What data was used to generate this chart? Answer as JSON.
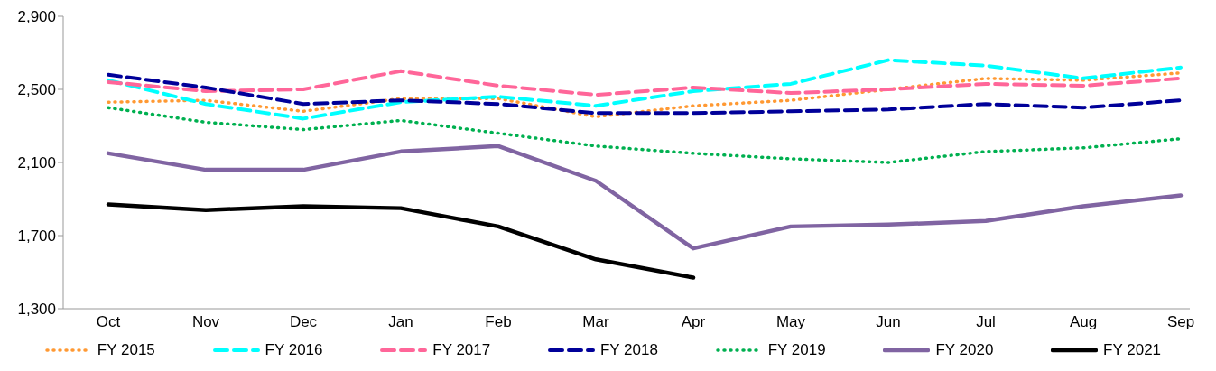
{
  "chart_data": {
    "type": "line",
    "categories": [
      "Oct",
      "Nov",
      "Dec",
      "Jan",
      "Feb",
      "Mar",
      "Apr",
      "May",
      "Jun",
      "Jul",
      "Aug",
      "Sep"
    ],
    "series": [
      {
        "name": "FY 2015",
        "color": "#ff9933",
        "line_style": "dotted",
        "values": [
          2430,
          2440,
          2380,
          2450,
          2450,
          2350,
          2410,
          2440,
          2500,
          2560,
          2550,
          2590
        ]
      },
      {
        "name": "FY 2016",
        "color": "#00ffff",
        "line_style": "dashed",
        "values": [
          2550,
          2420,
          2340,
          2430,
          2460,
          2410,
          2490,
          2530,
          2660,
          2630,
          2560,
          2620
        ]
      },
      {
        "name": "FY 2017",
        "color": "#ff6699",
        "line_style": "dashed",
        "values": [
          2540,
          2490,
          2500,
          2600,
          2520,
          2470,
          2510,
          2480,
          2500,
          2530,
          2520,
          2560
        ]
      },
      {
        "name": "FY 2018",
        "color": "#000099",
        "line_style": "dashed",
        "values": [
          2580,
          2510,
          2420,
          2440,
          2420,
          2370,
          2370,
          2380,
          2390,
          2420,
          2400,
          2440
        ]
      },
      {
        "name": "FY 2019",
        "color": "#00b050",
        "line_style": "dotted",
        "values": [
          2400,
          2320,
          2280,
          2330,
          2260,
          2190,
          2150,
          2120,
          2100,
          2160,
          2180,
          2230
        ]
      },
      {
        "name": "FY 2020",
        "color": "#8064a2",
        "line_style": "solid",
        "values": [
          2150,
          2060,
          2060,
          2160,
          2190,
          2000,
          1630,
          1750,
          1760,
          1780,
          1860,
          1920
        ]
      },
      {
        "name": "FY 2021",
        "color": "#000000",
        "line_style": "solid",
        "values": [
          1870,
          1840,
          1860,
          1850,
          1750,
          1570,
          1470,
          null,
          null,
          null,
          null,
          null
        ]
      }
    ],
    "ylim": [
      1300,
      2900
    ],
    "yticks": [
      {
        "value": 1300,
        "label": "1,300"
      },
      {
        "value": 1700,
        "label": "1,700"
      },
      {
        "value": 2100,
        "label": "2,100"
      },
      {
        "value": 2500,
        "label": "2,500"
      },
      {
        "value": 2900,
        "label": "2,900"
      }
    ],
    "grid": false,
    "legend": "bottom",
    "marker": "none"
  }
}
